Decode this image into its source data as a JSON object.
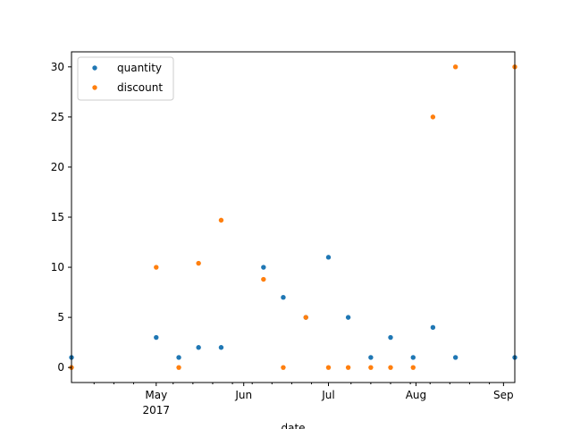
{
  "chart_data": {
    "type": "scatter",
    "title": "",
    "xlabel": "date",
    "ylabel": "",
    "xlim": [
      "2017-04-01",
      "2017-09-05"
    ],
    "ylim": [
      -1.5,
      31.5
    ],
    "grid": false,
    "legend_position": "upper-left",
    "x_major_ticks": [
      {
        "date": "2017-05-01",
        "label": "May",
        "sublabel": "2017"
      },
      {
        "date": "2017-06-01",
        "label": "Jun",
        "sublabel": ""
      },
      {
        "date": "2017-07-01",
        "label": "Jul",
        "sublabel": ""
      },
      {
        "date": "2017-08-01",
        "label": "Aug",
        "sublabel": ""
      },
      {
        "date": "2017-09-01",
        "label": "Sep",
        "sublabel": ""
      }
    ],
    "x_minor_ticks": [
      "2017-04-09",
      "2017-04-16",
      "2017-04-23",
      "2017-05-07",
      "2017-05-14",
      "2017-05-21",
      "2017-05-28",
      "2017-06-04",
      "2017-06-11",
      "2017-06-18",
      "2017-06-25",
      "2017-07-09",
      "2017-07-16",
      "2017-07-23",
      "2017-07-30",
      "2017-08-06",
      "2017-08-13",
      "2017-08-20",
      "2017-08-27"
    ],
    "y_ticks": [
      0,
      5,
      10,
      15,
      20,
      25,
      30
    ],
    "series": [
      {
        "name": "quantity",
        "color": "#1f77b4",
        "points": [
          {
            "x": "2017-04-01",
            "y": 1
          },
          {
            "x": "2017-05-01",
            "y": 3
          },
          {
            "x": "2017-05-09",
            "y": 1
          },
          {
            "x": "2017-05-16",
            "y": 2
          },
          {
            "x": "2017-05-24",
            "y": 2
          },
          {
            "x": "2017-06-08",
            "y": 10
          },
          {
            "x": "2017-06-15",
            "y": 7
          },
          {
            "x": "2017-06-23",
            "y": 5
          },
          {
            "x": "2017-07-01",
            "y": 11
          },
          {
            "x": "2017-07-08",
            "y": 5
          },
          {
            "x": "2017-07-16",
            "y": 1
          },
          {
            "x": "2017-07-23",
            "y": 3
          },
          {
            "x": "2017-07-31",
            "y": 1
          },
          {
            "x": "2017-08-07",
            "y": 4
          },
          {
            "x": "2017-08-15",
            "y": 1
          },
          {
            "x": "2017-09-05",
            "y": 1
          }
        ]
      },
      {
        "name": "discount",
        "color": "#ff7f0e",
        "points": [
          {
            "x": "2017-04-01",
            "y": 0
          },
          {
            "x": "2017-05-01",
            "y": 10
          },
          {
            "x": "2017-05-09",
            "y": 0
          },
          {
            "x": "2017-05-16",
            "y": 10.4
          },
          {
            "x": "2017-05-24",
            "y": 14.7
          },
          {
            "x": "2017-06-08",
            "y": 8.8
          },
          {
            "x": "2017-06-15",
            "y": 0
          },
          {
            "x": "2017-06-23",
            "y": 5
          },
          {
            "x": "2017-07-01",
            "y": 0
          },
          {
            "x": "2017-07-08",
            "y": 0
          },
          {
            "x": "2017-07-16",
            "y": 0
          },
          {
            "x": "2017-07-23",
            "y": 0
          },
          {
            "x": "2017-07-31",
            "y": 0
          },
          {
            "x": "2017-08-07",
            "y": 25
          },
          {
            "x": "2017-08-15",
            "y": 30
          },
          {
            "x": "2017-09-05",
            "y": 30
          }
        ]
      }
    ]
  }
}
